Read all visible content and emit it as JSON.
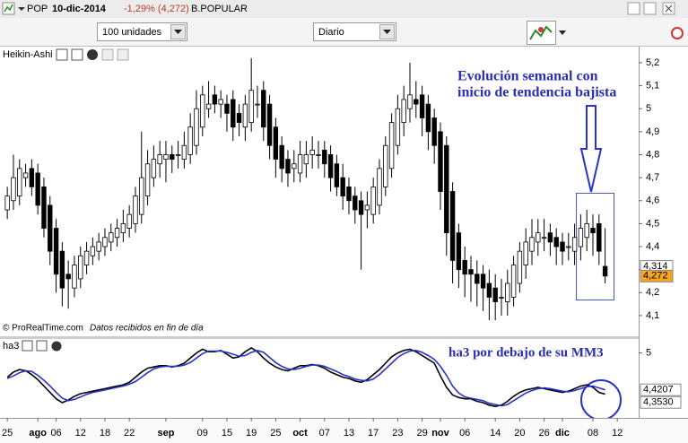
{
  "header": {
    "symbol": "POP",
    "date": "10-dic-2014",
    "change": "-1,29% (4,272)",
    "name": "B.POPULAR"
  },
  "toolbar": {
    "quantity": "100 unidades",
    "period": "Diario"
  },
  "chart_data": [
    {
      "type": "candlestick",
      "title": "Heikin-Ashi",
      "open": [
        4.56,
        4.6,
        4.62,
        4.7,
        4.74,
        4.72,
        4.66,
        4.58,
        4.48,
        4.38,
        4.28,
        4.22,
        4.26,
        4.32,
        4.36,
        4.38,
        4.4,
        4.42,
        4.44,
        4.46,
        4.48,
        4.5,
        4.54,
        4.62,
        4.7,
        4.76,
        4.78,
        4.8,
        4.8,
        4.78,
        4.8,
        4.84,
        4.92,
        5.0,
        5.06,
        5.02,
        5.02,
        5.04,
        4.98,
        4.92,
        4.94,
        5.02,
        5.08,
        5.02,
        4.92,
        4.84,
        4.78,
        4.74,
        4.72,
        4.76,
        4.8,
        4.8,
        4.82,
        4.8,
        4.76,
        4.7,
        4.66,
        4.62,
        4.6,
        4.56,
        4.54,
        4.58,
        4.66,
        4.74,
        4.84,
        4.94,
        5.0,
        5.04,
        5.06,
        5.02,
        4.96,
        4.9,
        4.84,
        4.64,
        4.46,
        4.34,
        4.3,
        4.28,
        4.28,
        4.24,
        4.22,
        4.18,
        4.16,
        4.18,
        4.24,
        4.32,
        4.38,
        4.42,
        4.44,
        4.46,
        4.44,
        4.42,
        4.4,
        4.38,
        4.4,
        4.44,
        4.48,
        4.5,
        4.314
      ],
      "high": [
        4.66,
        4.8,
        4.78,
        4.76,
        4.78,
        4.76,
        4.7,
        4.62,
        4.52,
        4.42,
        4.34,
        4.36,
        4.4,
        4.42,
        4.44,
        4.46,
        4.48,
        4.5,
        4.52,
        4.56,
        4.58,
        4.66,
        4.9,
        4.82,
        4.84,
        4.86,
        4.86,
        4.84,
        4.86,
        4.9,
        4.98,
        5.08,
        5.1,
        5.12,
        5.1,
        5.08,
        5.06,
        5.08,
        5.02,
        5.06,
        5.22,
        5.1,
        5.12,
        5.06,
        4.96,
        4.88,
        4.82,
        4.82,
        4.86,
        4.86,
        4.88,
        4.86,
        4.86,
        4.84,
        4.8,
        4.76,
        4.7,
        4.66,
        4.64,
        4.64,
        4.7,
        4.78,
        4.88,
        4.98,
        5.06,
        5.1,
        5.2,
        5.12,
        5.1,
        5.06,
        5.0,
        4.94,
        4.88,
        4.68,
        4.5,
        4.4,
        4.36,
        4.34,
        4.32,
        4.3,
        4.28,
        4.26,
        4.3,
        4.36,
        4.42,
        4.48,
        4.52,
        4.52,
        4.52,
        4.5,
        4.48,
        4.46,
        4.46,
        4.5,
        4.54,
        4.56,
        4.54,
        4.54,
        4.48
      ],
      "low": [
        4.52,
        4.56,
        4.58,
        4.66,
        4.62,
        4.54,
        4.44,
        4.32,
        4.2,
        4.14,
        4.13,
        4.18,
        4.22,
        4.28,
        4.32,
        4.34,
        4.36,
        4.38,
        4.4,
        4.42,
        4.44,
        4.46,
        4.5,
        4.58,
        4.66,
        4.7,
        4.68,
        4.72,
        4.74,
        4.74,
        4.76,
        4.8,
        4.88,
        4.96,
        4.98,
        4.96,
        4.9,
        4.86,
        4.88,
        4.86,
        4.9,
        4.96,
        4.86,
        4.78,
        4.7,
        4.68,
        4.66,
        4.68,
        4.68,
        4.7,
        4.74,
        4.74,
        4.7,
        4.64,
        4.62,
        4.56,
        4.54,
        4.5,
        4.3,
        4.48,
        4.5,
        4.54,
        4.62,
        4.7,
        4.8,
        4.88,
        4.94,
        4.96,
        4.88,
        4.82,
        4.76,
        4.56,
        4.36,
        4.24,
        4.22,
        4.18,
        4.16,
        4.14,
        4.12,
        4.08,
        4.08,
        4.1,
        4.1,
        4.14,
        4.2,
        4.26,
        4.32,
        4.36,
        4.38,
        4.36,
        4.32,
        4.32,
        4.34,
        4.32,
        4.34,
        4.38,
        4.36,
        4.32,
        4.24
      ],
      "close": [
        4.62,
        4.7,
        4.74,
        4.72,
        4.66,
        4.58,
        4.48,
        4.38,
        4.28,
        4.22,
        4.26,
        4.32,
        4.36,
        4.38,
        4.4,
        4.42,
        4.44,
        4.46,
        4.48,
        4.5,
        4.54,
        4.62,
        4.7,
        4.76,
        4.78,
        4.8,
        4.8,
        4.78,
        4.8,
        4.84,
        4.92,
        5.0,
        5.06,
        5.02,
        5.02,
        5.04,
        4.98,
        4.92,
        4.94,
        5.02,
        5.08,
        5.02,
        4.92,
        4.84,
        4.78,
        4.74,
        4.72,
        4.76,
        4.8,
        4.8,
        4.82,
        4.8,
        4.76,
        4.7,
        4.66,
        4.62,
        4.6,
        4.56,
        4.54,
        4.58,
        4.66,
        4.74,
        4.84,
        4.94,
        5.0,
        5.04,
        5.06,
        5.02,
        4.96,
        4.9,
        4.84,
        4.64,
        4.46,
        4.34,
        4.3,
        4.28,
        4.28,
        4.24,
        4.22,
        4.18,
        4.16,
        4.18,
        4.24,
        4.32,
        4.38,
        4.42,
        4.44,
        4.46,
        4.44,
        4.42,
        4.4,
        4.38,
        4.4,
        4.44,
        4.48,
        4.5,
        4.46,
        4.38,
        4.272
      ],
      "up_color": "#ffffff",
      "down_color": "#000000",
      "xlim": [
        -1.2,
        103.5
      ],
      "xticks": [
        {
          "value": 0,
          "label": "25"
        },
        {
          "value": 5,
          "label": "ago"
        },
        {
          "value": 8,
          "label": "06"
        },
        {
          "value": 12,
          "label": "12"
        },
        {
          "value": 16,
          "label": "18"
        },
        {
          "value": 20,
          "label": "22"
        },
        {
          "value": 26,
          "label": "sep"
        },
        {
          "value": 32,
          "label": "09"
        },
        {
          "value": 36,
          "label": "15"
        },
        {
          "value": 40,
          "label": "19"
        },
        {
          "value": 44,
          "label": "25"
        },
        {
          "value": 48,
          "label": "oct"
        },
        {
          "value": 52,
          "label": "07"
        },
        {
          "value": 56,
          "label": "13"
        },
        {
          "value": 60,
          "label": "17"
        },
        {
          "value": 64,
          "label": "23"
        },
        {
          "value": 68,
          "label": "29"
        },
        {
          "value": 71,
          "label": "nov"
        },
        {
          "value": 75,
          "label": "06"
        },
        {
          "value": 80,
          "label": "14"
        },
        {
          "value": 84,
          "label": "20"
        },
        {
          "value": 88,
          "label": "26"
        },
        {
          "value": 91,
          "label": "dic"
        },
        {
          "value": 96,
          "label": "08"
        },
        {
          "value": 100,
          "label": "12"
        }
      ],
      "ylim": [
        4.01,
        5.27
      ],
      "yticks": [
        {
          "value": 5.2,
          "label": "5,2"
        },
        {
          "value": 5.1,
          "label": "5,1"
        },
        5,
        {
          "value": 4.9,
          "label": "4,9"
        },
        {
          "value": 4.8,
          "label": "4,8"
        },
        {
          "value": 4.7,
          "label": "4,7"
        },
        {
          "value": 4.6,
          "label": "4,6"
        },
        {
          "value": 4.5,
          "label": "4,5"
        },
        {
          "value": 4.4,
          "label": "4,4"
        },
        {
          "value": 4.3,
          "label": "4,3"
        },
        {
          "value": 4.2,
          "label": "4,2"
        },
        {
          "value": 4.1,
          "label": "4,1"
        }
      ],
      "price_labels": [
        {
          "value": 4.314,
          "label": "4,314",
          "color": "#ffffff"
        },
        {
          "value": 4.272,
          "label": "4,272",
          "color": "#f5a623"
        }
      ],
      "annotations": [
        "Evolución semanal con",
        "inicio de tendencia bajista"
      ],
      "source": "© ProRealTime.com",
      "source_note": "Datos recibidos en fin de día"
    },
    {
      "type": "line",
      "title": "ha3",
      "ylim": [
        3.98,
        5.22
      ],
      "yticks": [
        5
      ],
      "series": [
        {
          "color": "#000000",
          "last_label": "4,3530",
          "values": [
            4.62,
            4.7,
            4.74,
            4.72,
            4.66,
            4.58,
            4.48,
            4.38,
            4.28,
            4.22,
            4.26,
            4.32,
            4.36,
            4.38,
            4.4,
            4.42,
            4.44,
            4.46,
            4.48,
            4.5,
            4.54,
            4.62,
            4.7,
            4.76,
            4.78,
            4.8,
            4.8,
            4.78,
            4.8,
            4.84,
            4.92,
            5.0,
            5.06,
            5.02,
            5.02,
            5.04,
            4.98,
            4.92,
            4.94,
            5.02,
            5.08,
            5.02,
            4.92,
            4.84,
            4.78,
            4.74,
            4.72,
            4.76,
            4.8,
            4.8,
            4.82,
            4.8,
            4.76,
            4.7,
            4.66,
            4.62,
            4.6,
            4.56,
            4.54,
            4.58,
            4.66,
            4.74,
            4.84,
            4.94,
            5.0,
            5.04,
            5.06,
            5.02,
            4.96,
            4.9,
            4.84,
            4.64,
            4.46,
            4.34,
            4.3,
            4.28,
            4.28,
            4.24,
            4.22,
            4.18,
            4.16,
            4.18,
            4.24,
            4.32,
            4.38,
            4.42,
            4.44,
            4.46,
            4.44,
            4.42,
            4.4,
            4.38,
            4.4,
            4.44,
            4.48,
            4.5,
            4.46,
            4.38,
            4.353
          ]
        },
        {
          "color": "#2a33c8",
          "last_label": "4,4207",
          "values": [
            4.6,
            4.64,
            4.69,
            4.72,
            4.71,
            4.65,
            4.57,
            4.48,
            4.38,
            4.29,
            4.25,
            4.27,
            4.31,
            4.35,
            4.38,
            4.4,
            4.42,
            4.44,
            4.46,
            4.48,
            4.51,
            4.55,
            4.62,
            4.69,
            4.75,
            4.78,
            4.79,
            4.79,
            4.79,
            4.81,
            4.85,
            4.92,
            4.99,
            5.03,
            5.03,
            5.03,
            5.01,
            4.98,
            4.95,
            4.96,
            5.01,
            5.04,
            5.01,
            4.93,
            4.85,
            4.79,
            4.75,
            4.74,
            4.76,
            4.79,
            4.81,
            4.81,
            4.79,
            4.75,
            4.71,
            4.66,
            4.63,
            4.59,
            4.57,
            4.56,
            4.59,
            4.66,
            4.75,
            4.84,
            4.93,
            4.99,
            5.03,
            5.04,
            5.01,
            4.96,
            4.9,
            4.79,
            4.65,
            4.48,
            4.37,
            4.31,
            4.29,
            4.27,
            4.25,
            4.21,
            4.19,
            4.17,
            4.19,
            4.25,
            4.31,
            4.37,
            4.41,
            4.44,
            4.45,
            4.44,
            4.42,
            4.4,
            4.39,
            4.41,
            4.44,
            4.47,
            4.48,
            4.45,
            4.4207
          ]
        }
      ],
      "annotation": "ha3 por debajo de su MM3"
    }
  ]
}
